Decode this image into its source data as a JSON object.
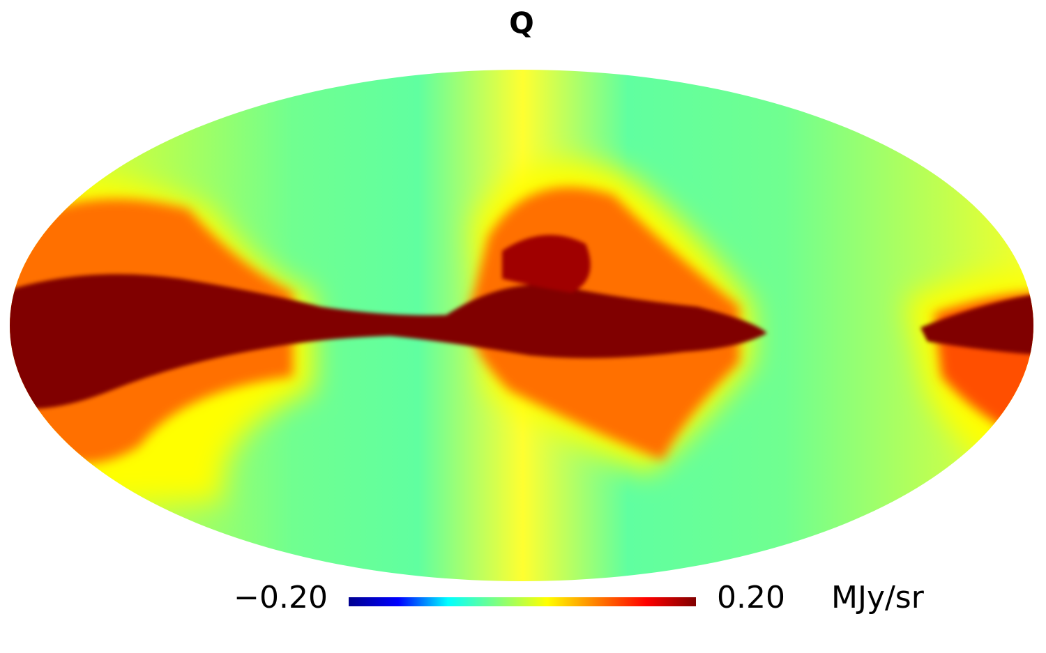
{
  "title": "Q",
  "colorbar": {
    "ticks": [
      {
        "value": -0.2,
        "label": "−0.20"
      },
      {
        "value": 0.2,
        "label": "0.20"
      }
    ],
    "unit": "MJy/sr",
    "colors": [
      "#00008f",
      "#0000ff",
      "#00ffff",
      "#7fff7f",
      "#ffff00",
      "#ff7f00",
      "#ff0000",
      "#800000"
    ]
  }
}
